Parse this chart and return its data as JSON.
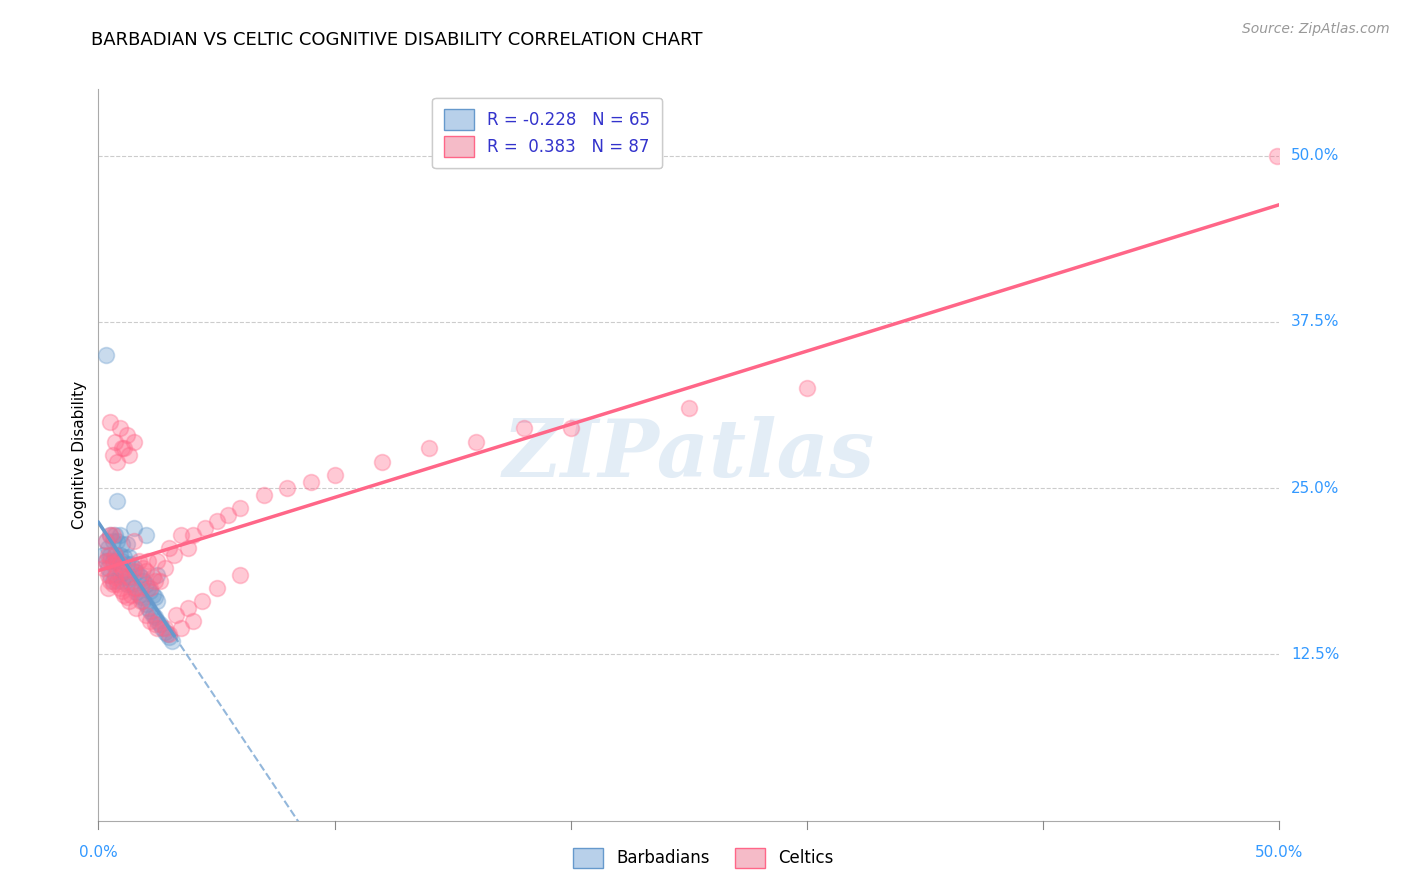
{
  "title": "BARBADIAN VS CELTIC COGNITIVE DISABILITY CORRELATION CHART",
  "source": "Source: ZipAtlas.com",
  "ylabel": "Cognitive Disability",
  "xlim": [
    0.0,
    0.5
  ],
  "ylim": [
    0.0,
    0.55
  ],
  "barbadian_color": "#6699CC",
  "celtic_color": "#FF6688",
  "barbadian_label": "Barbadians",
  "celtic_label": "Celtics",
  "R_barbadian": -0.228,
  "N_barbadian": 65,
  "R_celtic": 0.383,
  "N_celtic": 87,
  "watermark_text": "ZIPatlas",
  "ytick_values": [
    0.5,
    0.375,
    0.25,
    0.125
  ],
  "ytick_labels": [
    "50.0%",
    "37.5%",
    "25.0%",
    "12.5%"
  ],
  "xtick_values": [
    0.0,
    0.1,
    0.2,
    0.3,
    0.4,
    0.5
  ],
  "title_fontsize": 13,
  "source_fontsize": 10,
  "axis_label_fontsize": 11,
  "tick_label_fontsize": 11,
  "legend_fontsize": 12,
  "scatter_size": 130,
  "line_lw": 2.0,
  "barbadian_x": [
    0.002,
    0.003,
    0.003,
    0.004,
    0.004,
    0.005,
    0.005,
    0.005,
    0.006,
    0.006,
    0.006,
    0.007,
    0.007,
    0.007,
    0.008,
    0.008,
    0.008,
    0.009,
    0.009,
    0.009,
    0.01,
    0.01,
    0.01,
    0.011,
    0.011,
    0.012,
    0.012,
    0.012,
    0.013,
    0.013,
    0.014,
    0.014,
    0.015,
    0.015,
    0.016,
    0.016,
    0.017,
    0.017,
    0.018,
    0.018,
    0.019,
    0.019,
    0.02,
    0.02,
    0.021,
    0.021,
    0.022,
    0.022,
    0.023,
    0.023,
    0.024,
    0.024,
    0.025,
    0.025,
    0.026,
    0.027,
    0.028,
    0.029,
    0.03,
    0.031,
    0.003,
    0.008,
    0.015,
    0.02,
    0.025
  ],
  "barbadian_y": [
    0.2,
    0.195,
    0.21,
    0.19,
    0.205,
    0.185,
    0.2,
    0.215,
    0.18,
    0.195,
    0.21,
    0.185,
    0.2,
    0.215,
    0.18,
    0.195,
    0.21,
    0.185,
    0.2,
    0.215,
    0.18,
    0.195,
    0.208,
    0.183,
    0.198,
    0.178,
    0.193,
    0.208,
    0.183,
    0.198,
    0.178,
    0.193,
    0.175,
    0.19,
    0.172,
    0.187,
    0.17,
    0.185,
    0.168,
    0.183,
    0.165,
    0.18,
    0.163,
    0.178,
    0.16,
    0.175,
    0.158,
    0.173,
    0.155,
    0.17,
    0.153,
    0.168,
    0.15,
    0.165,
    0.148,
    0.145,
    0.142,
    0.14,
    0.138,
    0.135,
    0.35,
    0.24,
    0.22,
    0.215,
    0.185
  ],
  "celtic_x": [
    0.002,
    0.003,
    0.003,
    0.004,
    0.004,
    0.005,
    0.005,
    0.005,
    0.006,
    0.006,
    0.006,
    0.007,
    0.007,
    0.008,
    0.008,
    0.009,
    0.009,
    0.01,
    0.01,
    0.011,
    0.011,
    0.012,
    0.012,
    0.013,
    0.013,
    0.014,
    0.015,
    0.015,
    0.016,
    0.017,
    0.018,
    0.019,
    0.02,
    0.021,
    0.022,
    0.023,
    0.024,
    0.025,
    0.026,
    0.028,
    0.03,
    0.032,
    0.035,
    0.038,
    0.04,
    0.045,
    0.05,
    0.055,
    0.06,
    0.07,
    0.08,
    0.09,
    0.1,
    0.12,
    0.14,
    0.16,
    0.18,
    0.2,
    0.25,
    0.3,
    0.004,
    0.006,
    0.008,
    0.01,
    0.012,
    0.015,
    0.018,
    0.022,
    0.025,
    0.03,
    0.035,
    0.04,
    0.005,
    0.007,
    0.009,
    0.011,
    0.013,
    0.016,
    0.02,
    0.024,
    0.028,
    0.033,
    0.038,
    0.044,
    0.05,
    0.06,
    0.499
  ],
  "celtic_y": [
    0.19,
    0.195,
    0.21,
    0.185,
    0.2,
    0.18,
    0.195,
    0.215,
    0.178,
    0.193,
    0.215,
    0.183,
    0.2,
    0.178,
    0.195,
    0.175,
    0.193,
    0.173,
    0.19,
    0.17,
    0.188,
    0.168,
    0.185,
    0.165,
    0.183,
    0.17,
    0.188,
    0.21,
    0.175,
    0.195,
    0.175,
    0.19,
    0.188,
    0.195,
    0.175,
    0.183,
    0.18,
    0.195,
    0.18,
    0.19,
    0.205,
    0.2,
    0.215,
    0.205,
    0.215,
    0.22,
    0.225,
    0.23,
    0.235,
    0.245,
    0.25,
    0.255,
    0.26,
    0.27,
    0.28,
    0.285,
    0.295,
    0.295,
    0.31,
    0.325,
    0.175,
    0.275,
    0.27,
    0.28,
    0.29,
    0.285,
    0.165,
    0.15,
    0.145,
    0.14,
    0.145,
    0.15,
    0.3,
    0.285,
    0.295,
    0.28,
    0.275,
    0.16,
    0.155,
    0.148,
    0.145,
    0.155,
    0.16,
    0.165,
    0.175,
    0.185,
    0.5
  ]
}
